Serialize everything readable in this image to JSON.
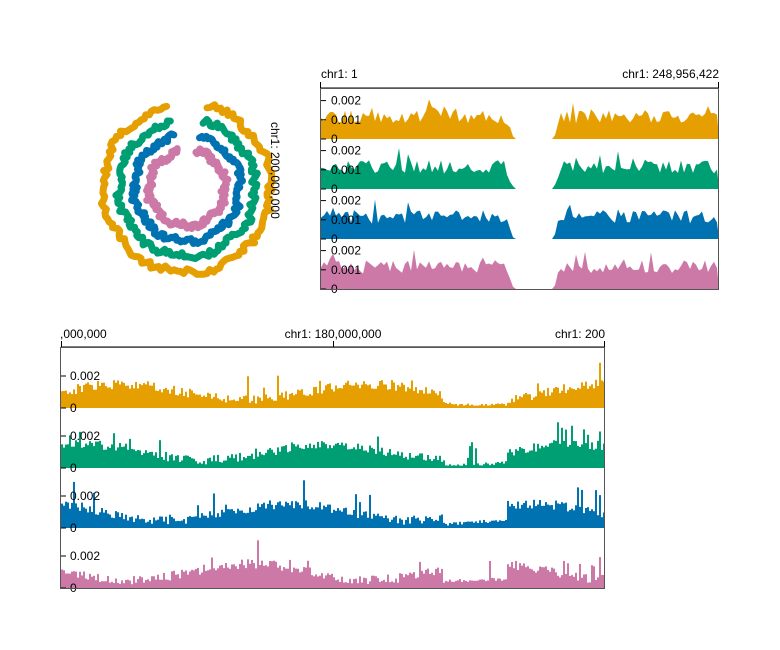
{
  "chart_data": [
    {
      "type": "area",
      "view": "circular",
      "region_label": "chr1: 200,000,000",
      "series": [
        {
          "color": "#E69F00"
        },
        {
          "color": "#009E73"
        },
        {
          "color": "#0072B2"
        },
        {
          "color": "#CC79A7"
        }
      ]
    },
    {
      "type": "area",
      "view": "linear-overview",
      "x_start_label": "chr1: 1",
      "x_end_label": "chr1: 248,956,422",
      "ylim": [
        0,
        0.0025
      ],
      "y_ticks": [
        "0.002",
        "0.001",
        "0"
      ],
      "series": [
        {
          "color": "#E69F00"
        },
        {
          "color": "#009E73"
        },
        {
          "color": "#0072B2"
        },
        {
          "color": "#CC79A7"
        }
      ]
    },
    {
      "type": "bar",
      "view": "linear-detail",
      "x_labels": [
        ",000,000",
        "chr1: 180,000,000",
        "chr1: 200"
      ],
      "ylim": [
        0,
        0.0035
      ],
      "y_ticks": [
        "0.002",
        "0"
      ],
      "series": [
        {
          "color": "#E69F00"
        },
        {
          "color": "#009E73"
        },
        {
          "color": "#0072B2"
        },
        {
          "color": "#CC79A7"
        }
      ]
    }
  ]
}
